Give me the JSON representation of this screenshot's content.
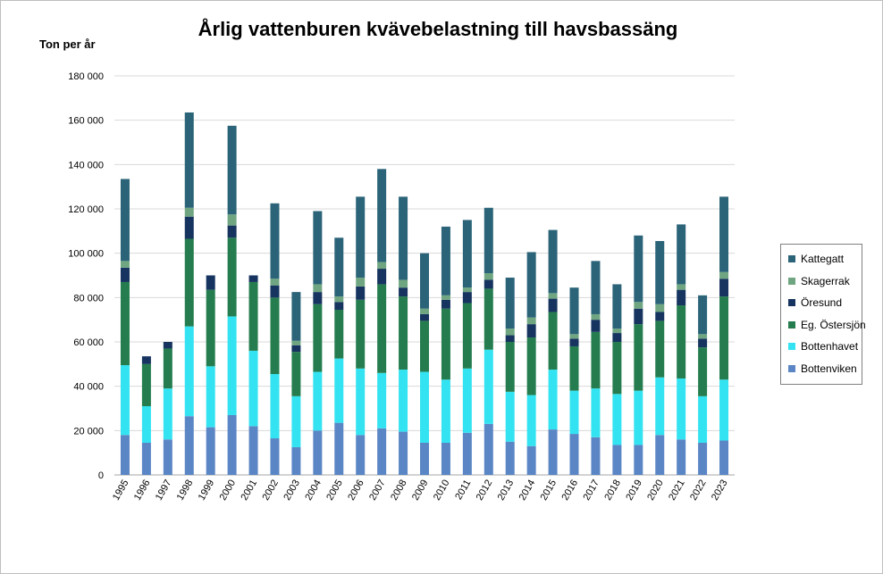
{
  "chart_data": {
    "type": "bar",
    "stacked": true,
    "title": "Årlig vattenburen kvävebelastning till havsbassäng",
    "ylabel": "Ton per år",
    "xlabel": "",
    "ylim": [
      0,
      180000
    ],
    "yticks": [
      0,
      20000,
      40000,
      60000,
      80000,
      100000,
      120000,
      140000,
      160000,
      180000
    ],
    "ytick_labels": [
      "0",
      "20 000",
      "40 000",
      "60 000",
      "80 000",
      "100 000",
      "120 000",
      "140 000",
      "160 000",
      "180 000"
    ],
    "grid": true,
    "legend_position": "right",
    "categories": [
      "1995",
      "1996",
      "1997",
      "1998",
      "1999",
      "2000",
      "2001",
      "2002",
      "2003",
      "2004",
      "2005",
      "2006",
      "2007",
      "2008",
      "2009",
      "2010",
      "2011",
      "2012",
      "2013",
      "2014",
      "2015",
      "2016",
      "2017",
      "2018",
      "2019",
      "2020",
      "2021",
      "2022",
      "2023"
    ],
    "series": [
      {
        "name": "Bottenviken",
        "color": "#5b86c5",
        "values": [
          18000,
          14500,
          16000,
          26500,
          21500,
          27000,
          22000,
          16500,
          12500,
          20000,
          23500,
          18000,
          21000,
          19500,
          14500,
          14500,
          19000,
          23000,
          15000,
          13000,
          20500,
          18500,
          17000,
          13500,
          13500,
          18000,
          16000,
          14500,
          15500
        ]
      },
      {
        "name": "Bottenhavet",
        "color": "#34e3f1",
        "values": [
          31500,
          16500,
          23000,
          40500,
          27500,
          44500,
          34000,
          29000,
          23000,
          26500,
          29000,
          30000,
          25000,
          28000,
          32000,
          28500,
          29000,
          33500,
          22500,
          23000,
          27000,
          19500,
          22000,
          23000,
          24500,
          26000,
          27500,
          21000,
          27500
        ]
      },
      {
        "name": "Eg. Östersjön",
        "color": "#257d4f",
        "values": [
          37500,
          19000,
          18000,
          39500,
          34500,
          35500,
          31000,
          34500,
          20000,
          30500,
          22000,
          31000,
          40000,
          33000,
          23000,
          32000,
          29500,
          27500,
          22500,
          26000,
          26000,
          20000,
          25500,
          23500,
          30000,
          25500,
          33000,
          22000,
          37500
        ]
      },
      {
        "name": "Öresund",
        "color": "#16345f",
        "values": [
          6500,
          3500,
          3000,
          10000,
          6500,
          5500,
          3000,
          5500,
          3000,
          5500,
          3500,
          6000,
          7000,
          4000,
          3000,
          4000,
          5000,
          4000,
          3000,
          6000,
          6000,
          3500,
          5500,
          4000,
          7000,
          4000,
          7000,
          4000,
          8000
        ]
      },
      {
        "name": "Skagerrak",
        "color": "#6fa681",
        "values": [
          3000,
          0,
          0,
          4000,
          0,
          5000,
          0,
          3000,
          2000,
          3500,
          2500,
          4000,
          3000,
          3500,
          2500,
          2000,
          2000,
          3000,
          3000,
          3000,
          2500,
          2000,
          2500,
          2000,
          3000,
          3500,
          2500,
          2000,
          3000
        ]
      },
      {
        "name": "Kattegatt",
        "color": "#2b6478",
        "values": [
          37000,
          0,
          0,
          43000,
          0,
          40000,
          0,
          34000,
          22000,
          33000,
          26500,
          36500,
          42000,
          37500,
          25000,
          31000,
          30500,
          29500,
          23000,
          29500,
          28500,
          21000,
          24000,
          20000,
          30000,
          28500,
          27000,
          17500,
          34000
        ]
      }
    ]
  }
}
